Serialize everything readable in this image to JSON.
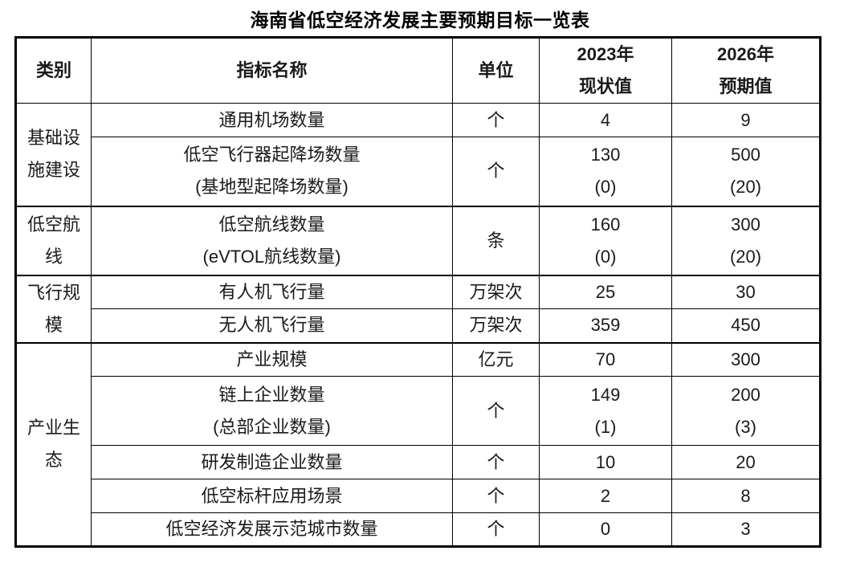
{
  "colors": {
    "text": "#1a1a1a",
    "title": "#000000",
    "border": "#000000",
    "background": "#ffffff"
  },
  "table": {
    "title": "海南省低空经济发展主要预期目标一览表",
    "columns": [
      "类别",
      "指标名称",
      "单位",
      "2023年\n现状值",
      "2026年\n预期值"
    ],
    "groups": [
      {
        "category": "基础设施建设",
        "rows": [
          {
            "indicator": "通用机场数量",
            "unit": "个",
            "v2023": "4",
            "v2026": "9"
          },
          {
            "indicator": "低空飞行器起降场数量\n(基地型起降场数量)",
            "unit": "个",
            "v2023": "130\n(0)",
            "v2026": "500\n(20)"
          }
        ]
      },
      {
        "category": "低空航线",
        "rows": [
          {
            "indicator": "低空航线数量\n(eVTOL航线数量)",
            "unit": "条",
            "v2023": "160\n(0)",
            "v2026": "300\n(20)"
          }
        ]
      },
      {
        "category": "飞行规模",
        "rows": [
          {
            "indicator": "有人机飞行量",
            "unit": "万架次",
            "v2023": "25",
            "v2026": "30"
          },
          {
            "indicator": "无人机飞行量",
            "unit": "万架次",
            "v2023": "359",
            "v2026": "450"
          }
        ]
      },
      {
        "category": "产业生态",
        "rows": [
          {
            "indicator": "产业规模",
            "unit": "亿元",
            "v2023": "70",
            "v2026": "300"
          },
          {
            "indicator": "链上企业数量\n(总部企业数量)",
            "unit": "个",
            "v2023": "149\n(1)",
            "v2026": "200\n(3)"
          },
          {
            "indicator": "研发制造企业数量",
            "unit": "个",
            "v2023": "10",
            "v2026": "20"
          },
          {
            "indicator": "低空标杆应用场景",
            "unit": "个",
            "v2023": "2",
            "v2026": "8"
          },
          {
            "indicator": "低空经济发展示范城市数量",
            "unit": "个",
            "v2023": "0",
            "v2026": "3"
          }
        ]
      }
    ]
  }
}
